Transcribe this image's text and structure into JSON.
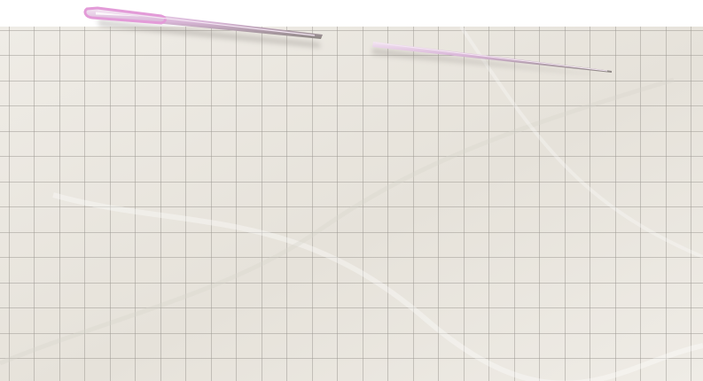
{
  "scene": {
    "paper_color": "#efece6",
    "paper_shade": "#e6e2da",
    "grid_line_color": "#9c9892",
    "needle_shaft_color": "#d9b6d8",
    "needle_highlight_color": "#f4e6f3",
    "needle_eye_color": "#e39bd8",
    "needle_shadow_color": "#8a8580"
  },
  "objects": {
    "paper": "grid-paper",
    "needle": "sewing-needle"
  }
}
